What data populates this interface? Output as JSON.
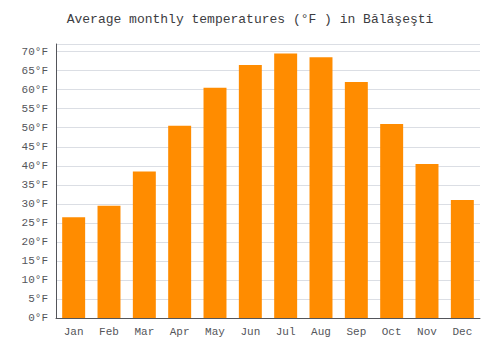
{
  "chart_data": {
    "type": "bar",
    "title": "Average monthly temperatures (°F ) in Bălăşeşti",
    "categories": [
      "Jan",
      "Feb",
      "Mar",
      "Apr",
      "May",
      "Jun",
      "Jul",
      "Aug",
      "Sep",
      "Oct",
      "Nov",
      "Dec"
    ],
    "values": [
      26.5,
      29.5,
      38.5,
      50.5,
      60.5,
      66.5,
      69.5,
      68.5,
      62.0,
      51.0,
      40.5,
      31.0
    ],
    "color": "#FF8C00",
    "ylim": [
      0,
      72
    ],
    "yticks": [
      {
        "value": 0,
        "label": "0°F"
      },
      {
        "value": 5,
        "label": "5°F"
      },
      {
        "value": 10,
        "label": "10°F"
      },
      {
        "value": 15,
        "label": "15°F"
      },
      {
        "value": 20,
        "label": "20°F"
      },
      {
        "value": 25,
        "label": "25°F"
      },
      {
        "value": 30,
        "label": "30°F"
      },
      {
        "value": 35,
        "label": "35°F"
      },
      {
        "value": 40,
        "label": "40°F"
      },
      {
        "value": 45,
        "label": "45°F"
      },
      {
        "value": 50,
        "label": "50°F"
      },
      {
        "value": 55,
        "label": "55°F"
      },
      {
        "value": 60,
        "label": "60°F"
      },
      {
        "value": 65,
        "label": "65°F"
      },
      {
        "value": 70,
        "label": "70°F"
      }
    ],
    "grid": true
  }
}
